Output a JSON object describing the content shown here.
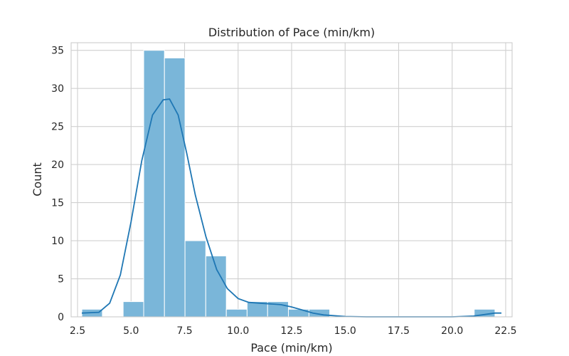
{
  "chart_data": {
    "type": "bar",
    "title": "Distribution of Pace (min/km)",
    "xlabel": "Pace (min/km)",
    "ylabel": "Count",
    "xlim": [
      2.2,
      22.8
    ],
    "ylim": [
      0,
      36
    ],
    "x_ticks": [
      2.5,
      5.0,
      7.5,
      10.0,
      12.5,
      15.0,
      17.5,
      20.0,
      22.5
    ],
    "y_ticks": [
      0,
      5,
      10,
      15,
      20,
      25,
      30,
      35
    ],
    "grid": true,
    "bin_edges": [
      2.7,
      3.66,
      4.63,
      5.59,
      6.56,
      7.52,
      8.49,
      9.45,
      10.42,
      11.38,
      12.35,
      13.31,
      14.28,
      15.24,
      16.21,
      17.17,
      18.14,
      19.1,
      20.07,
      21.03,
      22.0
    ],
    "counts": [
      1,
      0,
      2,
      35,
      34,
      10,
      8,
      1,
      2,
      2,
      1,
      1,
      0,
      0,
      0,
      0,
      0,
      0,
      0,
      1
    ],
    "kde": {
      "x": [
        2.7,
        3.5,
        4.0,
        4.5,
        5.0,
        5.5,
        6.0,
        6.5,
        6.8,
        7.2,
        7.6,
        8.0,
        8.5,
        9.0,
        9.5,
        10.0,
        10.5,
        11.0,
        11.5,
        12.0,
        12.5,
        13.0,
        13.5,
        14.0,
        15.0,
        16.0,
        18.0,
        20.0,
        21.0,
        21.5,
        22.0,
        22.3
      ],
      "y": [
        0.5,
        0.6,
        1.8,
        5.5,
        12.5,
        20.5,
        26.5,
        28.5,
        28.6,
        26.5,
        21.5,
        16.0,
        10.5,
        6.2,
        3.7,
        2.4,
        1.9,
        1.8,
        1.7,
        1.6,
        1.3,
        0.9,
        0.5,
        0.25,
        0.05,
        0.0,
        0.0,
        0.0,
        0.1,
        0.3,
        0.5,
        0.5
      ]
    },
    "colors": {
      "bar": "#7ab6d9",
      "kde": "#1f77b4",
      "grid": "#d0d0d0"
    }
  }
}
